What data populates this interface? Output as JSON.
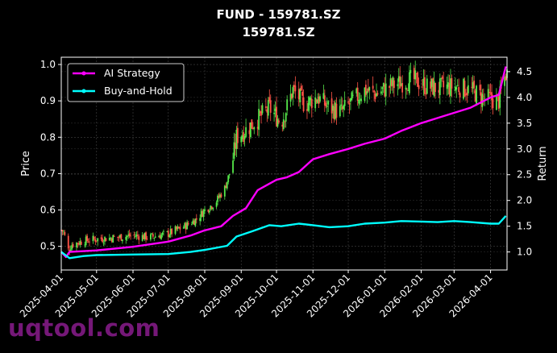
{
  "chart_data": {
    "type": "line",
    "title": "FUND - 159781.SZ",
    "subtitle": "159781.SZ",
    "ylabel_left": "Price",
    "ylabel_right": "Return",
    "grid": true,
    "legend_position": "top-left",
    "ylim_left": [
      0.435,
      1.02
    ],
    "yticks_left": [
      "0.5",
      "0.6",
      "0.7",
      "0.8",
      "0.9",
      "1.0"
    ],
    "ylim_right": [
      0.65,
      4.78
    ],
    "yticks_right": [
      "1.0",
      "1.5",
      "2.0",
      "2.5",
      "3.0",
      "3.5",
      "4.0",
      "4.5"
    ],
    "xlim": [
      "2025-04-01",
      "2026-04-15"
    ],
    "xticks": [
      "2025-04-01",
      "2025-05-01",
      "2025-06-01",
      "2025-07-01",
      "2025-08-01",
      "2025-09-01",
      "2025-10-01",
      "2025-11-01",
      "2025-12-01",
      "2026-01-01",
      "2026-02-01",
      "2026-03-01",
      "2026-04-01"
    ],
    "candlestick_series": {
      "name": "Price",
      "up_color": "#55e84a",
      "down_color": "#ff5347",
      "close_keypoints": [
        [
          "2025-04-01",
          0.545
        ],
        [
          "2025-04-03",
          0.54
        ],
        [
          "2025-04-07",
          0.49
        ],
        [
          "2025-04-10",
          0.505
        ],
        [
          "2025-04-20",
          0.515
        ],
        [
          "2025-05-01",
          0.52
        ],
        [
          "2025-05-20",
          0.525
        ],
        [
          "2025-06-01",
          0.53
        ],
        [
          "2025-06-15",
          0.525
        ],
        [
          "2025-07-01",
          0.535
        ],
        [
          "2025-07-15",
          0.555
        ],
        [
          "2025-07-25",
          0.575
        ],
        [
          "2025-08-01",
          0.6
        ],
        [
          "2025-08-10",
          0.62
        ],
        [
          "2025-08-18",
          0.66
        ],
        [
          "2025-08-24",
          0.72
        ],
        [
          "2025-08-28",
          0.8
        ],
        [
          "2025-09-05",
          0.82
        ],
        [
          "2025-09-15",
          0.85
        ],
        [
          "2025-09-25",
          0.88
        ],
        [
          "2025-10-05",
          0.84
        ],
        [
          "2025-10-15",
          0.93
        ],
        [
          "2025-10-25",
          0.89
        ],
        [
          "2025-11-05",
          0.91
        ],
        [
          "2025-11-15",
          0.88
        ],
        [
          "2025-11-25",
          0.87
        ],
        [
          "2025-12-05",
          0.9
        ],
        [
          "2025-12-15",
          0.93
        ],
        [
          "2025-12-25",
          0.92
        ],
        [
          "2026-01-05",
          0.94
        ],
        [
          "2026-01-15",
          0.95
        ],
        [
          "2026-01-25",
          0.96
        ],
        [
          "2026-02-05",
          0.94
        ],
        [
          "2026-02-15",
          0.935
        ],
        [
          "2026-03-01",
          0.94
        ],
        [
          "2026-03-15",
          0.93
        ],
        [
          "2026-03-25",
          0.91
        ],
        [
          "2026-04-01",
          0.905
        ],
        [
          "2026-04-08",
          0.9
        ],
        [
          "2026-04-14",
          0.975
        ]
      ]
    },
    "series": [
      {
        "name": "AI Strategy",
        "color": "#ff00ff",
        "axis": "right",
        "points": [
          [
            "2025-04-01",
            1.0
          ],
          [
            "2025-04-05",
            0.9
          ],
          [
            "2025-04-08",
            1.0
          ],
          [
            "2025-05-01",
            1.03
          ],
          [
            "2025-06-01",
            1.1
          ],
          [
            "2025-07-01",
            1.2
          ],
          [
            "2025-07-20",
            1.32
          ],
          [
            "2025-08-01",
            1.42
          ],
          [
            "2025-08-15",
            1.5
          ],
          [
            "2025-08-25",
            1.7
          ],
          [
            "2025-09-05",
            1.85
          ],
          [
            "2025-09-15",
            2.2
          ],
          [
            "2025-10-01",
            2.4
          ],
          [
            "2025-10-10",
            2.45
          ],
          [
            "2025-10-20",
            2.55
          ],
          [
            "2025-11-01",
            2.8
          ],
          [
            "2025-11-15",
            2.9
          ],
          [
            "2025-12-01",
            3.0
          ],
          [
            "2025-12-15",
            3.1
          ],
          [
            "2026-01-01",
            3.2
          ],
          [
            "2026-01-15",
            3.35
          ],
          [
            "2026-02-01",
            3.5
          ],
          [
            "2026-02-15",
            3.6
          ],
          [
            "2026-03-01",
            3.7
          ],
          [
            "2026-03-15",
            3.8
          ],
          [
            "2026-04-01",
            4.0
          ],
          [
            "2026-04-08",
            4.05
          ],
          [
            "2026-04-14",
            4.6
          ]
        ]
      },
      {
        "name": "Buy-and-Hold",
        "color": "#00ffff",
        "axis": "right",
        "points": [
          [
            "2025-04-01",
            1.0
          ],
          [
            "2025-04-08",
            0.88
          ],
          [
            "2025-04-20",
            0.92
          ],
          [
            "2025-05-01",
            0.94
          ],
          [
            "2025-06-01",
            0.95
          ],
          [
            "2025-07-01",
            0.96
          ],
          [
            "2025-07-20",
            1.0
          ],
          [
            "2025-08-01",
            1.04
          ],
          [
            "2025-08-20",
            1.12
          ],
          [
            "2025-08-28",
            1.3
          ],
          [
            "2025-09-10",
            1.4
          ],
          [
            "2025-09-25",
            1.52
          ],
          [
            "2025-10-05",
            1.5
          ],
          [
            "2025-10-20",
            1.55
          ],
          [
            "2025-11-01",
            1.52
          ],
          [
            "2025-11-15",
            1.48
          ],
          [
            "2025-12-01",
            1.5
          ],
          [
            "2025-12-15",
            1.55
          ],
          [
            "2026-01-01",
            1.57
          ],
          [
            "2026-01-15",
            1.6
          ],
          [
            "2026-02-01",
            1.59
          ],
          [
            "2026-02-15",
            1.58
          ],
          [
            "2026-03-01",
            1.6
          ],
          [
            "2026-03-15",
            1.58
          ],
          [
            "2026-04-01",
            1.55
          ],
          [
            "2026-04-08",
            1.55
          ],
          [
            "2026-04-14",
            1.7
          ]
        ]
      }
    ]
  },
  "watermark": "uqtool.com"
}
